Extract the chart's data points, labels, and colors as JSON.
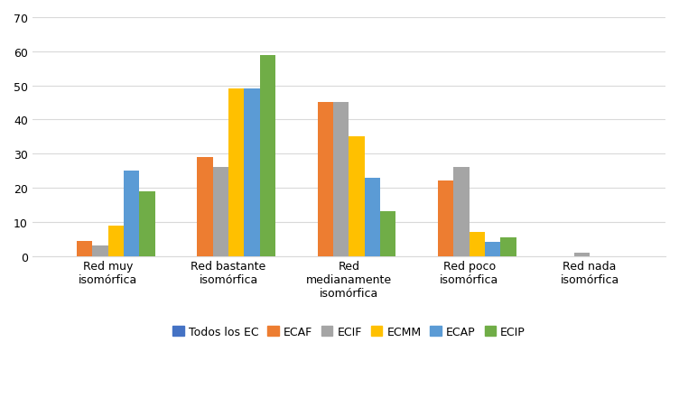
{
  "categories": [
    "Red muy\nisomórfica",
    "Red bastante\nisomórfica",
    "Red\nmedianamente\nisomórfica",
    "Red poco\nisomórfica",
    "Red nada\nisomórfica"
  ],
  "series": {
    "Todos los EC": [
      0,
      0,
      0,
      0,
      0
    ],
    "ECAF": [
      4.5,
      29,
      45,
      22,
      0
    ],
    "ECIF": [
      3,
      26,
      45,
      26,
      1
    ],
    "ECMM": [
      9,
      49,
      35,
      7,
      0
    ],
    "ECAP": [
      25,
      49,
      23,
      4,
      0
    ],
    "ECIP": [
      19,
      59,
      13,
      5.5,
      0
    ]
  },
  "colors": {
    "Todos los EC": "#4472c4",
    "ECAF": "#ed7d31",
    "ECIF": "#a5a5a5",
    "ECMM": "#ffc000",
    "ECAP": "#5b9bd5",
    "ECIP": "#70ad47"
  },
  "ylim": [
    0,
    70
  ],
  "yticks": [
    0,
    10,
    20,
    30,
    40,
    50,
    60,
    70
  ],
  "background_color": "#ffffff",
  "grid_color": "#d9d9d9",
  "bar_width": 0.13,
  "legend_labels": [
    "Todos los EC",
    "ECAF",
    "ECIF",
    "ECMM",
    "ECAP",
    "ECIP"
  ]
}
